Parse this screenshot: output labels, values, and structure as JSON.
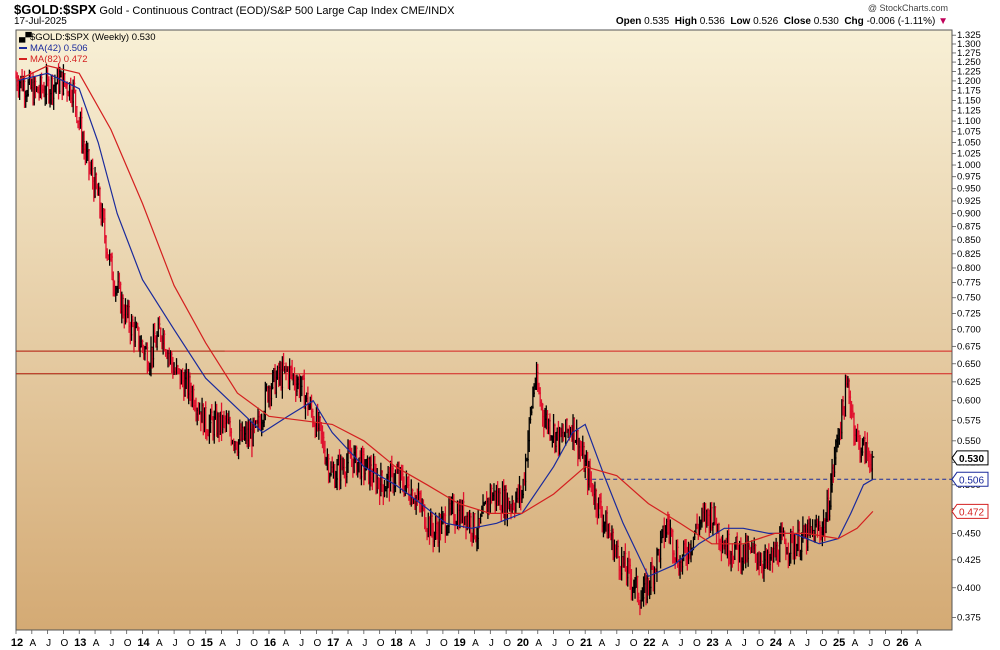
{
  "header": {
    "symbol": "$GOLD:$SPX",
    "description": "Gold - Continuous Contract (EOD)/S&P 500 Large Cap Index",
    "exchange": "CME/INDX",
    "date": "17-Jul-2025",
    "watermark": "@ StockCharts.com",
    "open_label": "Open",
    "open": "0.535",
    "high_label": "High",
    "high": "0.536",
    "low_label": "Low",
    "low": "0.526",
    "close_label": "Close",
    "close": "0.530",
    "chg_label": "Chg",
    "chg": "-0.006 (-1.11%)"
  },
  "colors": {
    "bg_top": "#f7eed2",
    "bg_bottom": "#d6ad78",
    "up": "#000000",
    "down": "#e0102e",
    "ma42": "#1a2a9c",
    "ma82": "#d42020",
    "green_line": "#1a9a1a",
    "red_line": "#d42020",
    "dashed": "#1a2a9c"
  },
  "chart_data": {
    "type": "line",
    "title": "$GOLD:$SPX (Weekly) 0.530",
    "price_style": "HLC bars (black up, red down)",
    "legend": [
      {
        "name": "$GOLD:$SPX (Weekly)",
        "value": "0.530"
      },
      {
        "name": "MA(42)",
        "value": "0.506"
      },
      {
        "name": "MA(82)",
        "value": "0.472"
      }
    ],
    "legend_position": "top-left",
    "y_scale": "log",
    "ylim": [
      0.365,
      1.34
    ],
    "xlim": [
      2012.0,
      2026.8
    ],
    "y_ticks": [
      "1.325",
      "1.300",
      "1.275",
      "1.250",
      "1.225",
      "1.200",
      "1.175",
      "1.150",
      "1.125",
      "1.100",
      "1.075",
      "1.050",
      "1.025",
      "1.000",
      "0.975",
      "0.950",
      "0.925",
      "0.900",
      "0.875",
      "0.850",
      "0.825",
      "0.800",
      "0.775",
      "0.750",
      "0.725",
      "0.700",
      "0.675",
      "0.650",
      "0.625",
      "0.600",
      "0.575",
      "0.550",
      "0.525",
      "0.500",
      "0.475",
      "0.450",
      "0.425",
      "0.400",
      "0.375"
    ],
    "x_ticks": [
      {
        "t": 2012.0,
        "label": "12"
      },
      {
        "t": 2012.25,
        "label": "A"
      },
      {
        "t": 2012.5,
        "label": "J"
      },
      {
        "t": 2012.75,
        "label": "O"
      },
      {
        "t": 2013.0,
        "label": "13"
      },
      {
        "t": 2013.25,
        "label": "A"
      },
      {
        "t": 2013.5,
        "label": "J"
      },
      {
        "t": 2013.75,
        "label": "O"
      },
      {
        "t": 2014.0,
        "label": "14"
      },
      {
        "t": 2014.25,
        "label": "A"
      },
      {
        "t": 2014.5,
        "label": "J"
      },
      {
        "t": 2014.75,
        "label": "O"
      },
      {
        "t": 2015.0,
        "label": "15"
      },
      {
        "t": 2015.25,
        "label": "A"
      },
      {
        "t": 2015.5,
        "label": "J"
      },
      {
        "t": 2015.75,
        "label": "O"
      },
      {
        "t": 2016.0,
        "label": "16"
      },
      {
        "t": 2016.25,
        "label": "A"
      },
      {
        "t": 2016.5,
        "label": "J"
      },
      {
        "t": 2016.75,
        "label": "O"
      },
      {
        "t": 2017.0,
        "label": "17"
      },
      {
        "t": 2017.25,
        "label": "A"
      },
      {
        "t": 2017.5,
        "label": "J"
      },
      {
        "t": 2017.75,
        "label": "O"
      },
      {
        "t": 2018.0,
        "label": "18"
      },
      {
        "t": 2018.25,
        "label": "A"
      },
      {
        "t": 2018.5,
        "label": "J"
      },
      {
        "t": 2018.75,
        "label": "O"
      },
      {
        "t": 2019.0,
        "label": "19"
      },
      {
        "t": 2019.25,
        "label": "A"
      },
      {
        "t": 2019.5,
        "label": "J"
      },
      {
        "t": 2019.75,
        "label": "O"
      },
      {
        "t": 2020.0,
        "label": "20"
      },
      {
        "t": 2020.25,
        "label": "A"
      },
      {
        "t": 2020.5,
        "label": "J"
      },
      {
        "t": 2020.75,
        "label": "O"
      },
      {
        "t": 2021.0,
        "label": "21"
      },
      {
        "t": 2021.25,
        "label": "A"
      },
      {
        "t": 2021.5,
        "label": "J"
      },
      {
        "t": 2021.75,
        "label": "O"
      },
      {
        "t": 2022.0,
        "label": "22"
      },
      {
        "t": 2022.25,
        "label": "A"
      },
      {
        "t": 2022.5,
        "label": "J"
      },
      {
        "t": 2022.75,
        "label": "O"
      },
      {
        "t": 2023.0,
        "label": "23"
      },
      {
        "t": 2023.25,
        "label": "A"
      },
      {
        "t": 2023.5,
        "label": "J"
      },
      {
        "t": 2023.75,
        "label": "O"
      },
      {
        "t": 2024.0,
        "label": "24"
      },
      {
        "t": 2024.25,
        "label": "A"
      },
      {
        "t": 2024.5,
        "label": "J"
      },
      {
        "t": 2024.75,
        "label": "O"
      },
      {
        "t": 2025.0,
        "label": "25"
      },
      {
        "t": 2025.25,
        "label": "A"
      },
      {
        "t": 2025.5,
        "label": "J"
      },
      {
        "t": 2025.75,
        "label": "O"
      },
      {
        "t": 2026.0,
        "label": "26"
      },
      {
        "t": 2026.25,
        "label": "A"
      }
    ],
    "horizontal_lines": [
      {
        "y": 0.668,
        "color": "green",
        "style": "solid",
        "extent": "left"
      },
      {
        "y": 0.668,
        "color": "red",
        "style": "solid",
        "extent": "full"
      },
      {
        "y": 0.636,
        "color": "green",
        "style": "solid",
        "extent": "left"
      },
      {
        "y": 0.636,
        "color": "red",
        "style": "solid",
        "extent": "full"
      },
      {
        "y": 0.506,
        "color": "blue",
        "style": "dashed",
        "extent": "right"
      }
    ],
    "price_labels": [
      {
        "value": "0.530",
        "style": "black"
      },
      {
        "value": "0.506",
        "style": "blue"
      },
      {
        "value": "0.472",
        "style": "red"
      }
    ],
    "series": [
      {
        "name": "$GOLD:$SPX (Weekly)",
        "anchor_x": [
          2012.0,
          2012.3,
          2012.7,
          2012.9,
          2013.1,
          2013.3,
          2013.5,
          2013.7,
          2013.9,
          2014.1,
          2014.3,
          2014.5,
          2014.8,
          2015.0,
          2015.3,
          2015.5,
          2015.8,
          2016.0,
          2016.3,
          2016.5,
          2016.8,
          2017.0,
          2017.3,
          2017.5,
          2017.8,
          2018.0,
          2018.3,
          2018.6,
          2018.9,
          2019.1,
          2019.3,
          2019.5,
          2019.8,
          2020.0,
          2020.2,
          2020.35,
          2020.6,
          2020.8,
          2021.0,
          2021.2,
          2021.5,
          2021.7,
          2021.9,
          2022.1,
          2022.3,
          2022.5,
          2022.8,
          2023.0,
          2023.2,
          2023.5,
          2023.7,
          2023.9,
          2024.1,
          2024.3,
          2024.6,
          2024.8,
          2025.0,
          2025.15,
          2025.3,
          2025.45,
          2025.55
        ],
        "anchor_y": [
          1.21,
          1.17,
          1.2,
          1.18,
          1.02,
          0.93,
          0.8,
          0.73,
          0.69,
          0.66,
          0.7,
          0.64,
          0.61,
          0.57,
          0.57,
          0.55,
          0.56,
          0.62,
          0.64,
          0.62,
          0.56,
          0.51,
          0.53,
          0.52,
          0.5,
          0.51,
          0.49,
          0.45,
          0.47,
          0.47,
          0.45,
          0.49,
          0.48,
          0.49,
          0.63,
          0.58,
          0.55,
          0.57,
          0.52,
          0.48,
          0.43,
          0.41,
          0.39,
          0.42,
          0.46,
          0.42,
          0.46,
          0.47,
          0.44,
          0.43,
          0.43,
          0.42,
          0.44,
          0.44,
          0.45,
          0.46,
          0.56,
          0.62,
          0.55,
          0.535,
          0.53
        ]
      },
      {
        "name": "MA(42)",
        "x": [
          2012.0,
          2012.5,
          2013.0,
          2013.3,
          2013.6,
          2014.0,
          2014.5,
          2015.0,
          2015.5,
          2015.9,
          2016.3,
          2016.7,
          2017.0,
          2017.5,
          2018.0,
          2018.4,
          2018.8,
          2019.2,
          2019.6,
          2020.0,
          2020.5,
          2020.8,
          2021.0,
          2021.3,
          2021.6,
          2022.0,
          2022.4,
          2022.8,
          2023.2,
          2023.5,
          2023.9,
          2024.3,
          2024.7,
          2025.0,
          2025.2,
          2025.4,
          2025.55
        ],
        "y": [
          1.2,
          1.22,
          1.18,
          1.05,
          0.9,
          0.78,
          0.7,
          0.63,
          0.59,
          0.56,
          0.58,
          0.6,
          0.56,
          0.52,
          0.5,
          0.48,
          0.46,
          0.455,
          0.46,
          0.47,
          0.52,
          0.56,
          0.57,
          0.51,
          0.46,
          0.41,
          0.42,
          0.44,
          0.455,
          0.455,
          0.45,
          0.45,
          0.44,
          0.445,
          0.47,
          0.5,
          0.506
        ]
      },
      {
        "name": "MA(82)",
        "x": [
          2012.0,
          2012.5,
          2013.0,
          2013.5,
          2014.0,
          2014.5,
          2015.0,
          2015.5,
          2016.0,
          2016.5,
          2017.0,
          2017.5,
          2018.0,
          2018.5,
          2019.0,
          2019.5,
          2020.0,
          2020.5,
          2021.0,
          2021.5,
          2022.0,
          2022.5,
          2023.0,
          2023.5,
          2024.0,
          2024.5,
          2025.0,
          2025.3,
          2025.55
        ],
        "y": [
          1.2,
          1.24,
          1.22,
          1.08,
          0.92,
          0.77,
          0.68,
          0.61,
          0.58,
          0.575,
          0.57,
          0.55,
          0.52,
          0.5,
          0.48,
          0.47,
          0.47,
          0.49,
          0.52,
          0.51,
          0.48,
          0.46,
          0.44,
          0.44,
          0.45,
          0.45,
          0.445,
          0.455,
          0.472
        ]
      }
    ]
  }
}
